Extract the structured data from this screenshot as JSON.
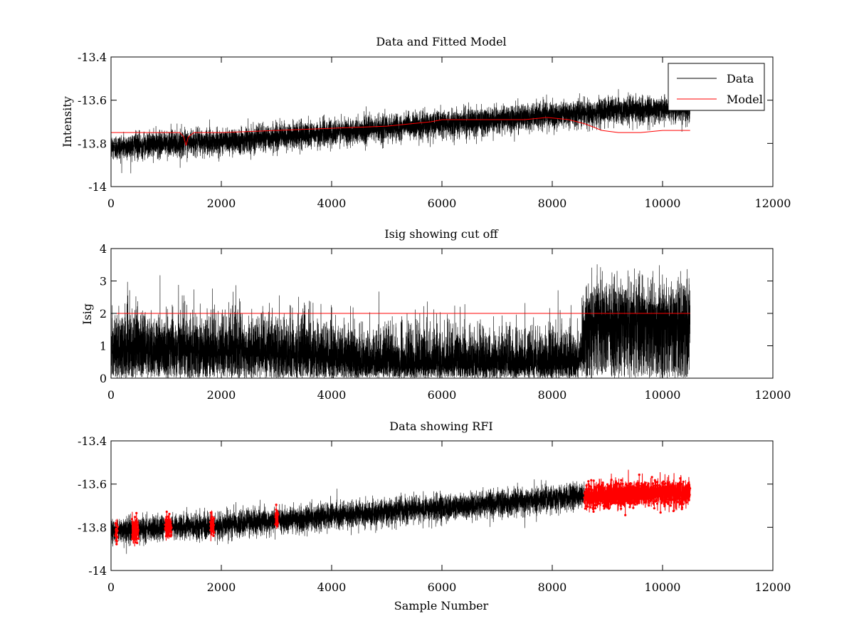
{
  "chart_data": [
    {
      "type": "line",
      "title": "Data and Fitted Model",
      "xlabel": "",
      "ylabel": "Intensity",
      "xlim": [
        0,
        12000
      ],
      "ylim": [
        -14,
        -13.4
      ],
      "xticks": [
        0,
        2000,
        4000,
        6000,
        8000,
        10000,
        12000
      ],
      "xtick_labels": [
        "0",
        "2000",
        "4000",
        "6000",
        "8000",
        "10000",
        "12000"
      ],
      "yticks": [
        -14,
        -13.8,
        -13.6,
        -13.4
      ],
      "ytick_labels": [
        "-14",
        "-13.8",
        "-13.6",
        "-13.4"
      ],
      "legend": {
        "position": "top-right",
        "entries": [
          "Data",
          "Model"
        ]
      },
      "series": [
        {
          "name": "Data",
          "color": "#000000",
          "kind": "noisy-band",
          "n_points": 10500,
          "x_range": [
            0,
            10500
          ],
          "trend_x": [
            0,
            1000,
            2000,
            3000,
            4000,
            5000,
            6000,
            7000,
            8000,
            8500,
            9000,
            10000,
            10500
          ],
          "trend_y": [
            -13.82,
            -13.8,
            -13.79,
            -13.77,
            -13.75,
            -13.73,
            -13.71,
            -13.69,
            -13.67,
            -13.66,
            -13.65,
            -13.64,
            -13.64
          ],
          "noise": 0.03
        },
        {
          "name": "Model",
          "color": "#ff0000",
          "x": [
            0,
            1000,
            1250,
            1320,
            1360,
            1400,
            1500,
            2000,
            3000,
            4000,
            5000,
            5800,
            6000,
            7000,
            7500,
            7900,
            8300,
            8600,
            8900,
            9200,
            9600,
            10000,
            10500
          ],
          "values": [
            -13.75,
            -13.75,
            -13.75,
            -13.77,
            -13.81,
            -13.77,
            -13.75,
            -13.75,
            -13.74,
            -13.73,
            -13.72,
            -13.7,
            -13.69,
            -13.69,
            -13.69,
            -13.68,
            -13.69,
            -13.71,
            -13.74,
            -13.75,
            -13.75,
            -13.74,
            -13.74
          ]
        }
      ]
    },
    {
      "type": "line",
      "title": "Isig showing cut off",
      "xlabel": "",
      "ylabel": "Isig",
      "xlim": [
        0,
        12000
      ],
      "ylim": [
        0,
        4
      ],
      "xticks": [
        0,
        2000,
        4000,
        6000,
        8000,
        10000,
        12000
      ],
      "xtick_labels": [
        "0",
        "2000",
        "4000",
        "6000",
        "8000",
        "10000",
        "12000"
      ],
      "yticks": [
        0,
        1,
        2,
        3,
        4
      ],
      "ytick_labels": [
        "0",
        "1",
        "2",
        "3",
        "4"
      ],
      "series": [
        {
          "name": "Isig",
          "color": "#000000",
          "kind": "noisy-band",
          "n_points": 10500,
          "x_range": [
            0,
            10500
          ],
          "trend_x": [
            0,
            1000,
            2000,
            3000,
            4000,
            4500,
            6000,
            7000,
            8500,
            8600,
            10500
          ],
          "trend_y": [
            1.0,
            0.95,
            0.9,
            0.85,
            0.75,
            0.55,
            0.5,
            0.5,
            0.55,
            1.9,
            1.9
          ],
          "noise": 0.55,
          "floor": 0
        },
        {
          "name": "Cut off",
          "color": "#ff0000",
          "x": [
            0,
            10500
          ],
          "values": [
            2,
            2
          ]
        }
      ]
    },
    {
      "type": "scatter",
      "title": "Data showing RFI",
      "xlabel": "Sample Number",
      "ylabel": "",
      "xlim": [
        0,
        12000
      ],
      "ylim": [
        -14,
        -13.4
      ],
      "xticks": [
        0,
        2000,
        4000,
        6000,
        8000,
        10000,
        12000
      ],
      "xtick_labels": [
        "0",
        "2000",
        "4000",
        "6000",
        "8000",
        "10000",
        "12000"
      ],
      "yticks": [
        -14,
        -13.8,
        -13.6,
        -13.4
      ],
      "ytick_labels": [
        "-14",
        "-13.8",
        "-13.6",
        "-13.4"
      ],
      "series": [
        {
          "name": "Data",
          "color": "#000000",
          "kind": "noisy-band",
          "n_points": 10500,
          "x_range": [
            0,
            10500
          ],
          "trend_x": [
            0,
            1000,
            2000,
            3000,
            4000,
            5000,
            6000,
            7000,
            8000,
            8500,
            9000,
            10000,
            10500
          ],
          "trend_y": [
            -13.82,
            -13.8,
            -13.79,
            -13.77,
            -13.75,
            -13.73,
            -13.71,
            -13.69,
            -13.67,
            -13.66,
            -13.65,
            -13.64,
            -13.64
          ],
          "noise": 0.03
        },
        {
          "name": "RFI",
          "color": "#ff0000",
          "kind": "flagged-points",
          "segments": [
            [
              80,
              120
            ],
            [
              380,
              500
            ],
            [
              980,
              1100
            ],
            [
              1800,
              1870
            ],
            [
              2980,
              3030
            ],
            [
              8580,
              10500
            ]
          ]
        }
      ]
    }
  ]
}
